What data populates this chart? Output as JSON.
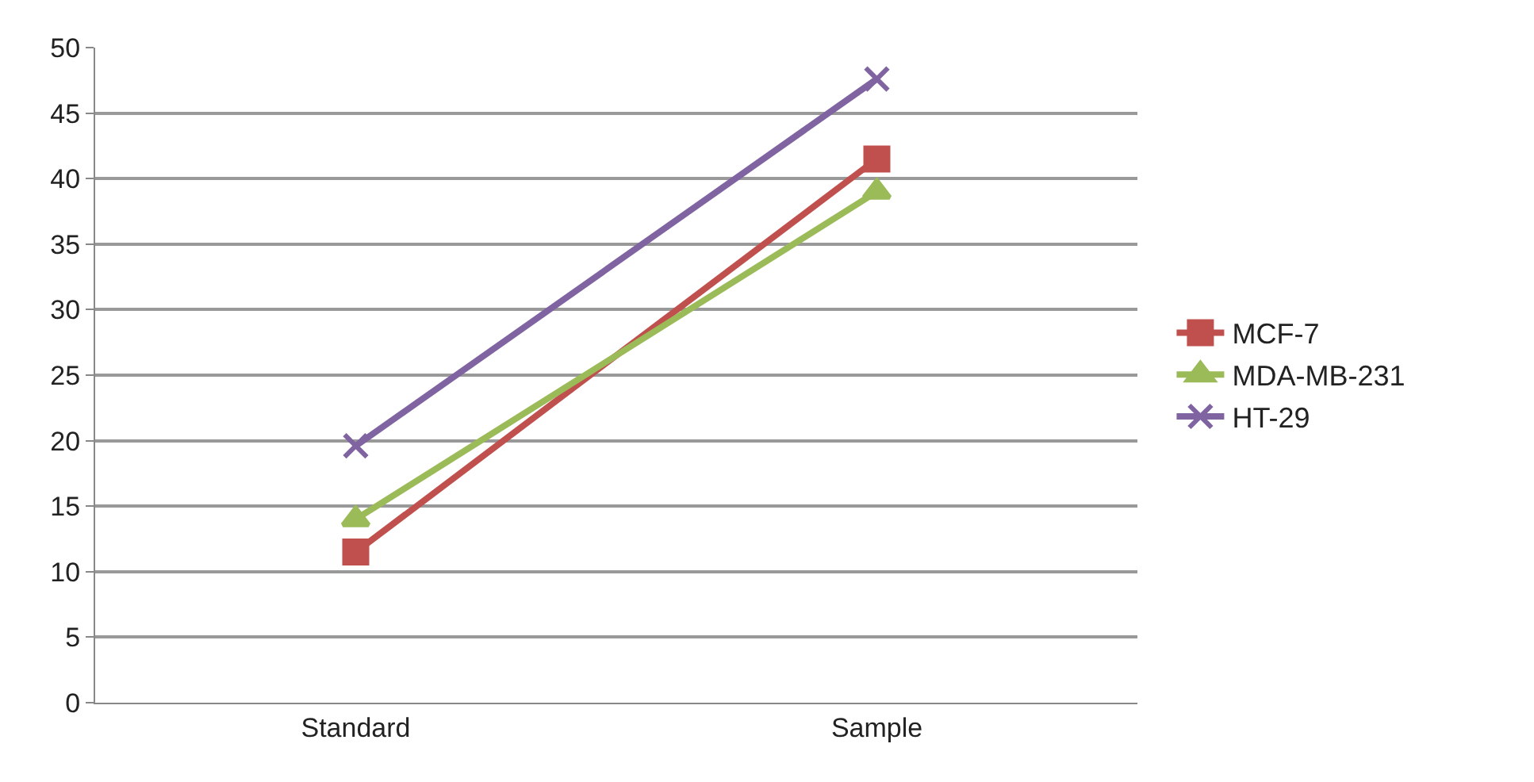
{
  "chart_data": {
    "type": "line",
    "categories": [
      "Standard",
      "Sample"
    ],
    "series": [
      {
        "name": "MCF-7",
        "color": "#c0504d",
        "marker": "square",
        "values": [
          11.5,
          41.5
        ]
      },
      {
        "name": "MDA-MB-231",
        "color": "#9bbb59",
        "marker": "triangle",
        "values": [
          14,
          39
        ]
      },
      {
        "name": "HT-29",
        "color": "#8064a2",
        "marker": "cross",
        "values": [
          19.6,
          47.6
        ]
      }
    ],
    "ylim": [
      0,
      50
    ],
    "yticks": [
      0,
      5,
      10,
      15,
      20,
      25,
      30,
      35,
      40,
      45,
      50
    ],
    "grid": "y",
    "legend": "right",
    "line_style": "solid"
  }
}
